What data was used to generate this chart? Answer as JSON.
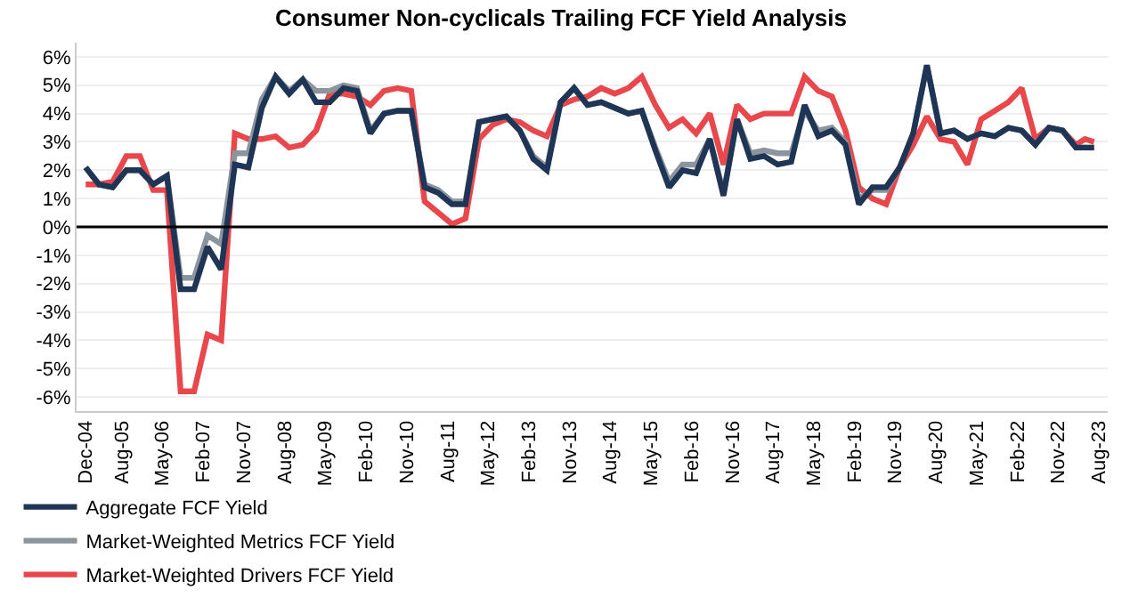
{
  "chart_data": {
    "type": "line",
    "title": "Consumer Non-cyclicals Trailing FCF Yield Analysis",
    "x": [
      "2004-12",
      "2005-03",
      "2005-06",
      "2005-09",
      "2005-12",
      "2006-03",
      "2006-06",
      "2006-09",
      "2006-12",
      "2007-03",
      "2007-06",
      "2007-09",
      "2007-12",
      "2008-03",
      "2008-06",
      "2008-09",
      "2008-12",
      "2009-03",
      "2009-06",
      "2009-09",
      "2009-12",
      "2010-03",
      "2010-06",
      "2010-09",
      "2010-12",
      "2011-03",
      "2011-06",
      "2011-09",
      "2011-12",
      "2012-03",
      "2012-06",
      "2012-09",
      "2012-12",
      "2013-03",
      "2013-06",
      "2013-09",
      "2013-12",
      "2014-03",
      "2014-06",
      "2014-09",
      "2014-12",
      "2015-03",
      "2015-06",
      "2015-09",
      "2015-12",
      "2016-03",
      "2016-06",
      "2016-09",
      "2016-12",
      "2017-03",
      "2017-06",
      "2017-09",
      "2017-12",
      "2018-03",
      "2018-06",
      "2018-09",
      "2018-12",
      "2019-03",
      "2019-06",
      "2019-09",
      "2019-12",
      "2020-03",
      "2020-06",
      "2020-09",
      "2020-12",
      "2021-03",
      "2021-06",
      "2021-09",
      "2021-12",
      "2022-03",
      "2022-06",
      "2022-09",
      "2022-12",
      "2023-03",
      "2023-05",
      "2023-07"
    ],
    "series": [
      {
        "name": "Market-Weighted Drivers FCF Yield",
        "color": "#e8474b",
        "values": [
          1.5,
          1.5,
          1.6,
          2.5,
          2.5,
          1.3,
          1.3,
          -5.8,
          -5.8,
          -3.8,
          -4.0,
          3.3,
          3.1,
          3.1,
          3.2,
          2.8,
          2.9,
          3.4,
          4.7,
          4.7,
          4.6,
          4.3,
          4.8,
          4.9,
          4.8,
          0.9,
          0.5,
          0.1,
          0.3,
          3.1,
          3.6,
          3.8,
          3.7,
          3.4,
          3.2,
          4.3,
          4.5,
          4.6,
          4.9,
          4.7,
          4.9,
          5.3,
          4.3,
          3.5,
          3.8,
          3.3,
          4.0,
          2.2,
          4.3,
          3.8,
          4.0,
          4.0,
          4.0,
          5.3,
          4.8,
          4.6,
          3.4,
          1.4,
          1.0,
          0.8,
          2.1,
          2.9,
          3.9,
          3.1,
          3.0,
          2.2,
          3.8,
          4.1,
          4.4,
          4.9,
          3.1,
          3.5,
          3.4,
          2.9,
          3.1,
          3.0
        ]
      },
      {
        "name": "Market-Weighted Metrics FCF Yield",
        "color": "#8c959e",
        "values": [
          2.1,
          1.5,
          1.4,
          2.0,
          2.0,
          1.5,
          1.8,
          -1.8,
          -1.8,
          -0.3,
          -0.6,
          2.6,
          2.6,
          4.5,
          5.3,
          4.8,
          5.2,
          4.8,
          4.8,
          5.0,
          4.9,
          3.4,
          4.0,
          4.1,
          4.1,
          1.5,
          1.3,
          0.9,
          0.9,
          3.7,
          3.8,
          3.9,
          3.4,
          2.5,
          2.1,
          4.4,
          4.9,
          4.3,
          4.4,
          4.2,
          4.0,
          4.1,
          2.8,
          1.6,
          2.2,
          2.2,
          3.1,
          1.2,
          3.8,
          2.6,
          2.7,
          2.6,
          2.6,
          4.1,
          3.4,
          3.5,
          3.0,
          1.0,
          1.3,
          1.3,
          2.1,
          3.3,
          5.7,
          3.3,
          3.4,
          3.1,
          3.3,
          3.2,
          3.5,
          3.4,
          2.9,
          3.5,
          3.4,
          2.8,
          2.8,
          2.8
        ]
      },
      {
        "name": "Aggregate FCF Yield",
        "color": "#1f3556",
        "values": [
          2.1,
          1.5,
          1.4,
          2.0,
          2.0,
          1.5,
          1.8,
          -2.2,
          -2.2,
          -0.7,
          -1.5,
          2.2,
          2.1,
          4.2,
          5.3,
          4.7,
          5.2,
          4.4,
          4.4,
          4.9,
          4.8,
          3.3,
          4.0,
          4.1,
          4.1,
          1.4,
          1.2,
          0.8,
          0.8,
          3.7,
          3.8,
          3.9,
          3.4,
          2.4,
          2.0,
          4.4,
          4.9,
          4.3,
          4.4,
          4.2,
          4.0,
          4.1,
          2.7,
          1.4,
          2.0,
          1.9,
          3.1,
          1.1,
          3.8,
          2.4,
          2.5,
          2.2,
          2.3,
          4.3,
          3.2,
          3.4,
          2.9,
          0.8,
          1.4,
          1.4,
          2.1,
          3.3,
          5.7,
          3.3,
          3.4,
          3.1,
          3.3,
          3.2,
          3.5,
          3.4,
          2.9,
          3.5,
          3.4,
          2.8,
          2.8,
          2.8
        ]
      }
    ],
    "ylim": [
      -6.5,
      6.5
    ],
    "yticks": [
      {
        "value": -6,
        "label": "-6%"
      },
      {
        "value": -5,
        "label": "-5%"
      },
      {
        "value": -4,
        "label": "-4%"
      },
      {
        "value": -3,
        "label": "-3%"
      },
      {
        "value": -2,
        "label": "-2%"
      },
      {
        "value": -1,
        "label": "-1%"
      },
      {
        "value": 0,
        "label": "0%"
      },
      {
        "value": 1,
        "label": "1%"
      },
      {
        "value": 2,
        "label": "2%"
      },
      {
        "value": 3,
        "label": "3%"
      },
      {
        "value": 4,
        "label": "4%"
      },
      {
        "value": 5,
        "label": "5%"
      },
      {
        "value": 6,
        "label": "6%"
      }
    ],
    "xlim": [
      "2004-10",
      "2023-10"
    ],
    "xticks": [
      {
        "value": "2004-12",
        "label": "Dec-04"
      },
      {
        "value": "2005-08",
        "label": "Aug-05"
      },
      {
        "value": "2006-05",
        "label": "May-06"
      },
      {
        "value": "2007-02",
        "label": "Feb-07"
      },
      {
        "value": "2007-11",
        "label": "Nov-07"
      },
      {
        "value": "2008-08",
        "label": "Aug-08"
      },
      {
        "value": "2009-05",
        "label": "May-09"
      },
      {
        "value": "2010-02",
        "label": "Feb-10"
      },
      {
        "value": "2010-11",
        "label": "Nov-10"
      },
      {
        "value": "2011-08",
        "label": "Aug-11"
      },
      {
        "value": "2012-05",
        "label": "May-12"
      },
      {
        "value": "2013-02",
        "label": "Feb-13"
      },
      {
        "value": "2013-11",
        "label": "Nov-13"
      },
      {
        "value": "2014-08",
        "label": "Aug-14"
      },
      {
        "value": "2015-05",
        "label": "May-15"
      },
      {
        "value": "2016-02",
        "label": "Feb-16"
      },
      {
        "value": "2016-11",
        "label": "Nov-16"
      },
      {
        "value": "2017-08",
        "label": "Aug-17"
      },
      {
        "value": "2018-05",
        "label": "May-18"
      },
      {
        "value": "2019-02",
        "label": "Feb-19"
      },
      {
        "value": "2019-11",
        "label": "Nov-19"
      },
      {
        "value": "2020-08",
        "label": "Aug-20"
      },
      {
        "value": "2021-05",
        "label": "May-21"
      },
      {
        "value": "2022-02",
        "label": "Feb-22"
      },
      {
        "value": "2022-11",
        "label": "Nov-22"
      },
      {
        "value": "2023-08",
        "label": "Aug-23"
      }
    ],
    "ref_lines": [
      {
        "axis": "y",
        "value": 0,
        "color": "#000000"
      }
    ],
    "grid": "y",
    "legend": "bottom left",
    "line_style": "solid",
    "marker": "none"
  }
}
